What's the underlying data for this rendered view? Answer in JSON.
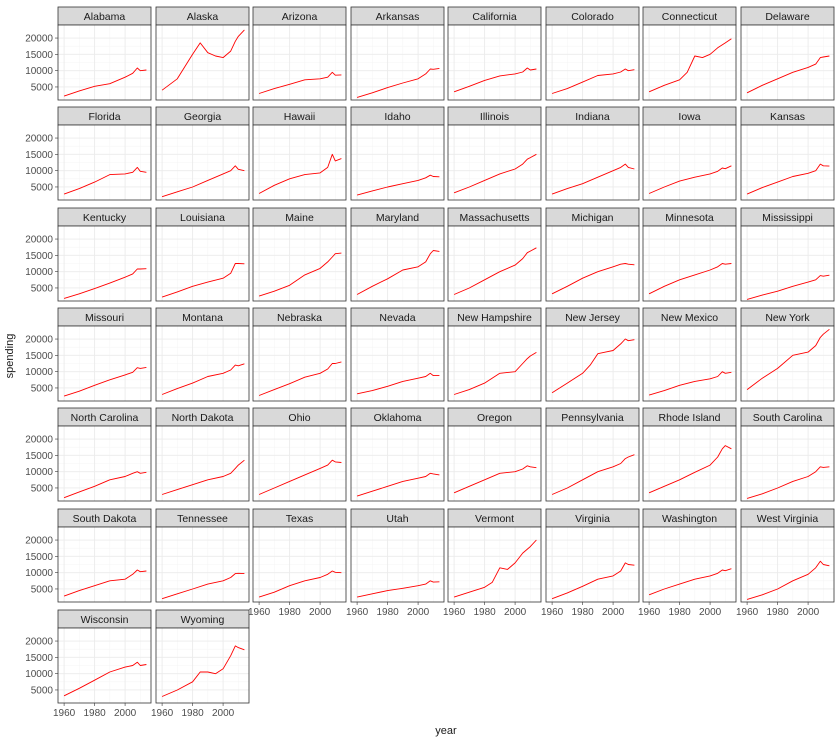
{
  "chart_data": {
    "type": "line",
    "xlabel": "year",
    "ylabel": "spending",
    "xlim": [
      1956,
      2017
    ],
    "ylim": [
      1000,
      24000
    ],
    "x_ticks": [
      1960,
      1980,
      2000
    ],
    "y_ticks": [
      5000,
      10000,
      15000,
      20000
    ],
    "grid": true,
    "line_color": "#ff0000",
    "strip_color": "#d9d9d9",
    "facets": [
      {
        "name": "Alabama",
        "x": [
          1960,
          1970,
          1980,
          1990,
          2000,
          2005,
          2008,
          2010,
          2014
        ],
        "y": [
          2200,
          3800,
          5200,
          6000,
          8000,
          9200,
          10800,
          10000,
          10200
        ]
      },
      {
        "name": "Alaska",
        "x": [
          1960,
          1970,
          1980,
          1985,
          1990,
          1995,
          2000,
          2005,
          2008,
          2010,
          2014
        ],
        "y": [
          4000,
          7500,
          15000,
          18500,
          15500,
          14500,
          14000,
          16000,
          19000,
          20500,
          22500
        ]
      },
      {
        "name": "Arizona",
        "x": [
          1960,
          1970,
          1980,
          1990,
          2000,
          2005,
          2008,
          2010,
          2014
        ],
        "y": [
          3000,
          4500,
          5800,
          7200,
          7500,
          8000,
          9500,
          8600,
          8700
        ]
      },
      {
        "name": "Arkansas",
        "x": [
          1960,
          1970,
          1980,
          1990,
          2000,
          2005,
          2008,
          2010,
          2014
        ],
        "y": [
          1800,
          3200,
          4800,
          6200,
          7500,
          9000,
          10500,
          10400,
          10700
        ]
      },
      {
        "name": "California",
        "x": [
          1960,
          1970,
          1980,
          1990,
          2000,
          2005,
          2008,
          2010,
          2014
        ],
        "y": [
          3500,
          5200,
          7000,
          8400,
          9000,
          9600,
          10800,
          10200,
          10500
        ]
      },
      {
        "name": "Colorado",
        "x": [
          1960,
          1970,
          1980,
          1990,
          2000,
          2005,
          2008,
          2010,
          2014
        ],
        "y": [
          3000,
          4500,
          6500,
          8500,
          9000,
          9600,
          10500,
          10000,
          10300
        ]
      },
      {
        "name": "Connecticut",
        "x": [
          1960,
          1970,
          1980,
          1985,
          1990,
          1995,
          2000,
          2005,
          2010,
          2014
        ],
        "y": [
          3500,
          5500,
          7200,
          9500,
          14500,
          14000,
          15000,
          17000,
          18500,
          19800
        ]
      },
      {
        "name": "Delaware",
        "x": [
          1960,
          1970,
          1980,
          1990,
          2000,
          2005,
          2008,
          2010,
          2014
        ],
        "y": [
          3200,
          5500,
          7500,
          9500,
          11000,
          12000,
          14000,
          14200,
          14500
        ]
      },
      {
        "name": "Florida",
        "x": [
          1960,
          1970,
          1980,
          1990,
          2000,
          2005,
          2008,
          2010,
          2014
        ],
        "y": [
          2800,
          4500,
          6500,
          8800,
          9000,
          9500,
          11000,
          9800,
          9500
        ]
      },
      {
        "name": "Georgia",
        "x": [
          1960,
          1970,
          1980,
          1990,
          2000,
          2005,
          2008,
          2010,
          2014
        ],
        "y": [
          2000,
          3500,
          5000,
          7000,
          9000,
          10000,
          11500,
          10400,
          10000
        ]
      },
      {
        "name": "Hawaii",
        "x": [
          1960,
          1970,
          1980,
          1990,
          2000,
          2005,
          2008,
          2010,
          2014
        ],
        "y": [
          3000,
          5500,
          7500,
          8800,
          9300,
          11000,
          15000,
          13000,
          13700
        ]
      },
      {
        "name": "Idaho",
        "x": [
          1960,
          1970,
          1980,
          1990,
          2000,
          2005,
          2008,
          2010,
          2014
        ],
        "y": [
          2500,
          3800,
          5000,
          6000,
          7000,
          7800,
          8600,
          8200,
          8100
        ]
      },
      {
        "name": "Illinois",
        "x": [
          1960,
          1970,
          1980,
          1990,
          2000,
          2005,
          2008,
          2010,
          2014
        ],
        "y": [
          3200,
          5000,
          7000,
          9000,
          10500,
          12000,
          13500,
          14000,
          15000
        ]
      },
      {
        "name": "Indiana",
        "x": [
          1960,
          1970,
          1980,
          1990,
          2000,
          2005,
          2008,
          2010,
          2014
        ],
        "y": [
          2800,
          4500,
          6000,
          8000,
          10000,
          11000,
          12000,
          11000,
          10500
        ]
      },
      {
        "name": "Iowa",
        "x": [
          1960,
          1970,
          1980,
          1990,
          2000,
          2005,
          2008,
          2010,
          2014
        ],
        "y": [
          3000,
          5000,
          6800,
          8000,
          9000,
          9800,
          10800,
          10600,
          11500
        ]
      },
      {
        "name": "Kansas",
        "x": [
          1960,
          1970,
          1980,
          1990,
          2000,
          2005,
          2008,
          2010,
          2014
        ],
        "y": [
          2800,
          4800,
          6500,
          8200,
          9200,
          10000,
          12000,
          11500,
          11400
        ]
      },
      {
        "name": "Kentucky",
        "x": [
          1960,
          1970,
          1980,
          1990,
          2000,
          2005,
          2008,
          2010,
          2014
        ],
        "y": [
          1800,
          3200,
          4800,
          6500,
          8300,
          9300,
          10800,
          10800,
          10900
        ]
      },
      {
        "name": "Louisiana",
        "x": [
          1960,
          1970,
          1980,
          1990,
          2000,
          2005,
          2008,
          2010,
          2014
        ],
        "y": [
          2200,
          3800,
          5500,
          6800,
          8000,
          9500,
          12500,
          12500,
          12400
        ]
      },
      {
        "name": "Maine",
        "x": [
          1960,
          1970,
          1980,
          1990,
          2000,
          2005,
          2008,
          2010,
          2014
        ],
        "y": [
          2500,
          4000,
          5800,
          9000,
          11000,
          13000,
          14500,
          15500,
          15700
        ]
      },
      {
        "name": "Maryland",
        "x": [
          1960,
          1970,
          1980,
          1990,
          2000,
          2005,
          2008,
          2010,
          2014
        ],
        "y": [
          3000,
          5500,
          7800,
          10500,
          11500,
          13000,
          15500,
          16500,
          16200
        ]
      },
      {
        "name": "Massachusetts",
        "x": [
          1960,
          1970,
          1980,
          1990,
          2000,
          2005,
          2008,
          2010,
          2014
        ],
        "y": [
          3000,
          5000,
          7500,
          10000,
          12000,
          14000,
          15800,
          16300,
          17300
        ]
      },
      {
        "name": "Michigan",
        "x": [
          1960,
          1970,
          1980,
          1990,
          2000,
          2005,
          2008,
          2010,
          2014
        ],
        "y": [
          3200,
          5500,
          8000,
          10000,
          11500,
          12300,
          12500,
          12300,
          12100
        ]
      },
      {
        "name": "Minnesota",
        "x": [
          1960,
          1970,
          1980,
          1990,
          2000,
          2005,
          2008,
          2010,
          2014
        ],
        "y": [
          3200,
          5500,
          7500,
          9000,
          10500,
          11500,
          12500,
          12300,
          12500
        ]
      },
      {
        "name": "Mississippi",
        "x": [
          1960,
          1970,
          1980,
          1990,
          2000,
          2005,
          2008,
          2010,
          2014
        ],
        "y": [
          1500,
          2800,
          4000,
          5500,
          6800,
          7500,
          8800,
          8600,
          8900
        ]
      },
      {
        "name": "Missouri",
        "x": [
          1960,
          1970,
          1980,
          1990,
          2000,
          2005,
          2008,
          2010,
          2014
        ],
        "y": [
          2500,
          4000,
          5800,
          7500,
          9000,
          9800,
          11200,
          11000,
          11300
        ]
      },
      {
        "name": "Montana",
        "x": [
          1960,
          1970,
          1980,
          1990,
          2000,
          2005,
          2008,
          2010,
          2014
        ],
        "y": [
          3000,
          4800,
          6500,
          8500,
          9500,
          10500,
          12000,
          11800,
          12400
        ]
      },
      {
        "name": "Nebraska",
        "x": [
          1960,
          1970,
          1980,
          1990,
          2000,
          2005,
          2008,
          2010,
          2014
        ],
        "y": [
          2700,
          4500,
          6300,
          8300,
          9500,
          10800,
          12500,
          12500,
          13000
        ]
      },
      {
        "name": "Nevada",
        "x": [
          1960,
          1970,
          1980,
          1990,
          2000,
          2005,
          2008,
          2010,
          2014
        ],
        "y": [
          3200,
          4200,
          5500,
          7000,
          8000,
          8500,
          9500,
          8800,
          8800
        ]
      },
      {
        "name": "New Hampshire",
        "x": [
          1960,
          1970,
          1980,
          1990,
          2000,
          2005,
          2008,
          2010,
          2014
        ],
        "y": [
          3000,
          4500,
          6500,
          9500,
          10000,
          12500,
          14000,
          14800,
          15900
        ]
      },
      {
        "name": "New Jersey",
        "x": [
          1960,
          1970,
          1980,
          1985,
          1990,
          1995,
          2000,
          2005,
          2008,
          2010,
          2014
        ],
        "y": [
          3500,
          6500,
          9500,
          12000,
          15500,
          16000,
          16500,
          18500,
          20000,
          19500,
          19800
        ]
      },
      {
        "name": "New Mexico",
        "x": [
          1960,
          1970,
          1980,
          1990,
          2000,
          2005,
          2008,
          2010,
          2014
        ],
        "y": [
          2800,
          4200,
          5800,
          7000,
          7800,
          8500,
          10000,
          9500,
          9800
        ]
      },
      {
        "name": "New York",
        "x": [
          1960,
          1970,
          1980,
          1990,
          2000,
          2005,
          2008,
          2010,
          2014
        ],
        "y": [
          4500,
          8000,
          11000,
          15000,
          16000,
          18000,
          20500,
          21500,
          23000
        ]
      },
      {
        "name": "North Carolina",
        "x": [
          1960,
          1970,
          1980,
          1990,
          2000,
          2005,
          2008,
          2010,
          2014
        ],
        "y": [
          2000,
          3800,
          5500,
          7500,
          8500,
          9500,
          10000,
          9500,
          9800
        ]
      },
      {
        "name": "North Dakota",
        "x": [
          1960,
          1970,
          1980,
          1990,
          2000,
          2005,
          2008,
          2010,
          2014
        ],
        "y": [
          3000,
          4500,
          6000,
          7500,
          8500,
          9500,
          11000,
          12000,
          13500
        ]
      },
      {
        "name": "Ohio",
        "x": [
          1960,
          1970,
          1980,
          1990,
          2000,
          2005,
          2008,
          2010,
          2014
        ],
        "y": [
          3000,
          5000,
          7000,
          9000,
          11000,
          12000,
          13500,
          13000,
          12800
        ]
      },
      {
        "name": "Oklahoma",
        "x": [
          1960,
          1970,
          1980,
          1990,
          2000,
          2005,
          2008,
          2010,
          2014
        ],
        "y": [
          2500,
          4000,
          5500,
          7000,
          8000,
          8500,
          9500,
          9300,
          9000
        ]
      },
      {
        "name": "Oregon",
        "x": [
          1960,
          1970,
          1980,
          1990,
          2000,
          2005,
          2008,
          2010,
          2014
        ],
        "y": [
          3500,
          5500,
          7500,
          9500,
          10000,
          10800,
          11800,
          11500,
          11200
        ]
      },
      {
        "name": "Pennsylvania",
        "x": [
          1960,
          1970,
          1980,
          1990,
          2000,
          2005,
          2008,
          2010,
          2014
        ],
        "y": [
          3000,
          5000,
          7500,
          10000,
          11500,
          12500,
          14000,
          14500,
          15200
        ]
      },
      {
        "name": "Rhode Island",
        "x": [
          1960,
          1970,
          1980,
          1990,
          2000,
          2005,
          2008,
          2010,
          2014
        ],
        "y": [
          3500,
          5500,
          7500,
          9800,
          12000,
          14500,
          17000,
          18000,
          17000
        ]
      },
      {
        "name": "South Carolina",
        "x": [
          1960,
          1970,
          1980,
          1990,
          2000,
          2005,
          2008,
          2010,
          2014
        ],
        "y": [
          1800,
          3200,
          5000,
          7000,
          8500,
          10000,
          11500,
          11300,
          11500
        ]
      },
      {
        "name": "South Dakota",
        "x": [
          1960,
          1970,
          1980,
          1990,
          2000,
          2005,
          2008,
          2010,
          2014
        ],
        "y": [
          2800,
          4500,
          6000,
          7500,
          8000,
          9500,
          10800,
          10300,
          10500
        ]
      },
      {
        "name": "Tennessee",
        "x": [
          1960,
          1970,
          1980,
          1990,
          2000,
          2005,
          2008,
          2010,
          2014
        ],
        "y": [
          2000,
          3500,
          5000,
          6500,
          7500,
          8500,
          9700,
          9800,
          9700
        ]
      },
      {
        "name": "Texas",
        "x": [
          1960,
          1970,
          1980,
          1990,
          2000,
          2005,
          2008,
          2010,
          2014
        ],
        "y": [
          2500,
          4000,
          6000,
          7500,
          8500,
          9500,
          10500,
          10100,
          10000
        ]
      },
      {
        "name": "Utah",
        "x": [
          1960,
          1970,
          1980,
          1990,
          2000,
          2005,
          2008,
          2010,
          2014
        ],
        "y": [
          2500,
          3500,
          4500,
          5200,
          6000,
          6500,
          7500,
          7100,
          7200
        ]
      },
      {
        "name": "Vermont",
        "x": [
          1960,
          1970,
          1980,
          1985,
          1990,
          1995,
          2000,
          2005,
          2010,
          2014
        ],
        "y": [
          2500,
          4000,
          5500,
          7000,
          11500,
          11000,
          13000,
          16000,
          18000,
          20000
        ]
      },
      {
        "name": "Virginia",
        "x": [
          1960,
          1970,
          1980,
          1990,
          2000,
          2005,
          2008,
          2010,
          2014
        ],
        "y": [
          2000,
          3800,
          5800,
          8000,
          9000,
          10500,
          13000,
          12500,
          12300
        ]
      },
      {
        "name": "Washington",
        "x": [
          1960,
          1970,
          1980,
          1990,
          2000,
          2005,
          2008,
          2010,
          2014
        ],
        "y": [
          3200,
          5000,
          6500,
          8000,
          9000,
          9800,
          10800,
          10600,
          11200
        ]
      },
      {
        "name": "West Virginia",
        "x": [
          1960,
          1970,
          1980,
          1990,
          2000,
          2005,
          2008,
          2010,
          2014
        ],
        "y": [
          1800,
          3200,
          5000,
          7500,
          9500,
          11500,
          13500,
          12500,
          12100
        ]
      },
      {
        "name": "Wisconsin",
        "x": [
          1960,
          1970,
          1980,
          1990,
          2000,
          2005,
          2008,
          2010,
          2014
        ],
        "y": [
          3200,
          5500,
          8000,
          10500,
          12000,
          12500,
          13500,
          12500,
          12800
        ]
      },
      {
        "name": "Wyoming",
        "x": [
          1960,
          1970,
          1980,
          1985,
          1990,
          1995,
          2000,
          2005,
          2008,
          2010,
          2014
        ],
        "y": [
          3000,
          5000,
          7500,
          10500,
          10500,
          10000,
          11500,
          15500,
          18500,
          18000,
          17300
        ]
      }
    ]
  }
}
